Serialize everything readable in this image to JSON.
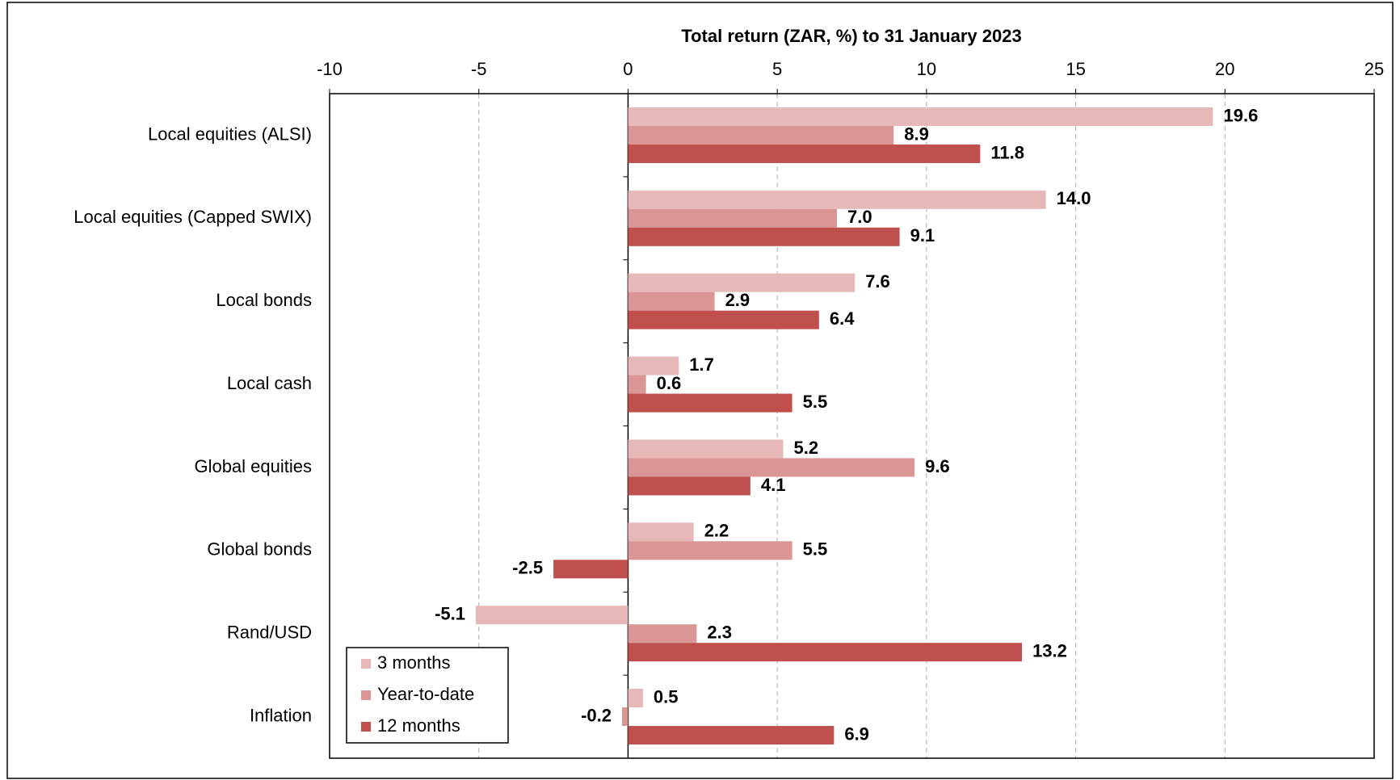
{
  "chart_data": {
    "type": "bar",
    "orientation": "horizontal",
    "title": "Total return (ZAR, %) to 31 January 2023",
    "categories": [
      "Local equities (ALSI)",
      "Local equities (Capped SWIX)",
      "Local bonds",
      "Local cash",
      "Global equities",
      "Global bonds",
      "Rand/USD",
      "Inflation"
    ],
    "series": [
      {
        "name": "3 months",
        "color": "#e6b8b7",
        "values": [
          19.6,
          14.0,
          7.6,
          1.7,
          5.2,
          2.2,
          -5.1,
          0.5
        ],
        "value_labels": [
          "19.6",
          "14.0",
          "7.6",
          "1.7",
          "5.2",
          "2.2",
          "-5.1",
          "0.5"
        ]
      },
      {
        "name": "Year-to-date",
        "color": "#d99694",
        "values": [
          8.9,
          7.0,
          2.9,
          0.6,
          9.6,
          5.5,
          2.3,
          -0.2
        ],
        "value_labels": [
          "8.9",
          "7.0",
          "2.9",
          "0.6",
          "9.6",
          "5.5",
          "2.3",
          "-0.2"
        ]
      },
      {
        "name": "12 months",
        "color": "#c0504d",
        "values": [
          11.8,
          9.1,
          6.4,
          5.5,
          4.1,
          -2.5,
          13.2,
          6.9
        ],
        "value_labels": [
          "11.8",
          "9.1",
          "6.4",
          "5.5",
          "4.1",
          "-2.5",
          "13.2",
          "6.9"
        ]
      }
    ],
    "xlim": [
      -10,
      25
    ],
    "xticks": [
      -10,
      -5,
      0,
      5,
      10,
      15,
      20,
      25
    ],
    "grid": true,
    "legend": "lower left"
  }
}
